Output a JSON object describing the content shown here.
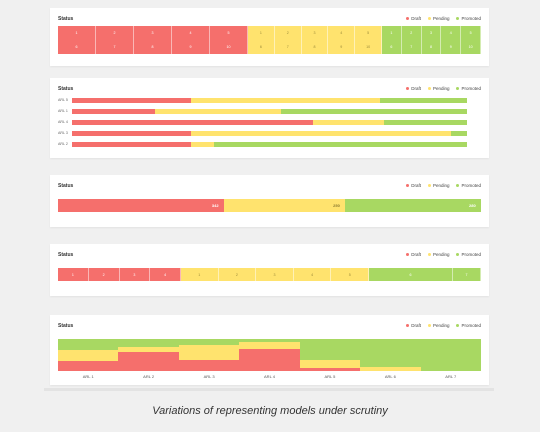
{
  "colors": {
    "draft": "#f56f6c",
    "pending": "#ffe36e",
    "promoted": "#a8d862"
  },
  "legend": [
    "Draft",
    "Pending",
    "Promoted"
  ],
  "panels": [
    {
      "title": "Status",
      "row1": {
        "draft": [
          "1",
          "2",
          "3",
          "4",
          "5"
        ],
        "pending": [
          "1",
          "2",
          "3",
          "4",
          "5"
        ],
        "promoted": [
          "1",
          "2",
          "3",
          "4",
          "5"
        ]
      },
      "row2": {
        "draft": [
          "6",
          "7",
          "8",
          "9",
          "10"
        ],
        "pending": [
          "6",
          "7",
          "8",
          "9",
          "10"
        ],
        "promoted": [
          "6",
          "7",
          "8",
          "9",
          "10"
        ]
      }
    },
    {
      "title": "Status",
      "rows": [
        {
          "label": "ARL 5",
          "draft": 0.3,
          "pending": 0.48
        },
        {
          "label": "ARL 1",
          "draft": 0.21,
          "pending": 0.32
        },
        {
          "label": "ARL 4",
          "draft": 0.61,
          "pending": 0.18
        },
        {
          "label": "ARL 3",
          "draft": 0.3,
          "pending": 0.66
        },
        {
          "label": "ARL 2",
          "draft": 0.3,
          "pending": 0.06
        }
      ]
    },
    {
      "title": "Status",
      "values": {
        "draft": "342",
        "pending": "250",
        "promoted": "280"
      }
    },
    {
      "title": "Status",
      "draft": [
        "1",
        "2",
        "3",
        "4"
      ],
      "pending": [
        "1",
        "2",
        "3",
        "4",
        "5"
      ],
      "promoted": [
        "6",
        "7"
      ]
    },
    {
      "title": "Status",
      "chart_data": {
        "type": "area",
        "categories": [
          "ARL 1",
          "ARL 2",
          "ARL 3",
          "ARL 4",
          "ARL 5",
          "ARL 6",
          "ARL 7"
        ],
        "series": [
          {
            "name": "Draft",
            "values": [
              0.3,
              0.6,
              0.35,
              0.7,
              0.1,
              0.0,
              0.0
            ]
          },
          {
            "name": "Pending",
            "values": [
              0.35,
              0.15,
              0.45,
              0.2,
              0.25,
              0.12,
              0.0
            ]
          },
          {
            "name": "Promoted",
            "values": [
              0.35,
              0.25,
              0.2,
              0.1,
              0.65,
              0.88,
              1.0
            ]
          }
        ]
      }
    }
  ],
  "caption": "Variations of representing models under scrutiny"
}
